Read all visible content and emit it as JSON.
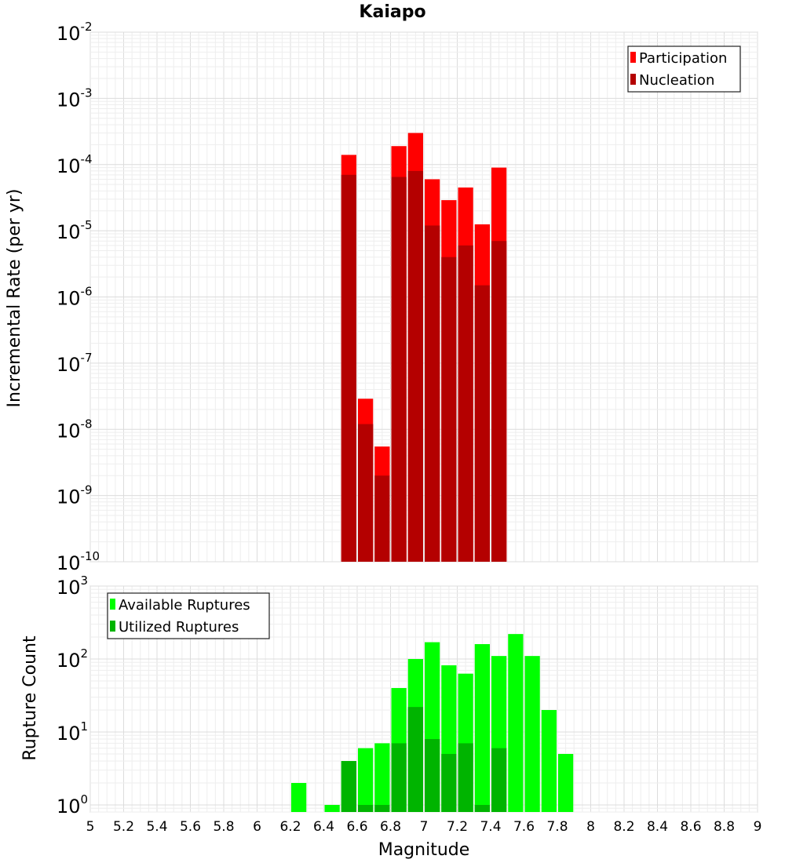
{
  "chart_data": [
    {
      "type": "bar",
      "title": "Kaiapo",
      "xlabel": "",
      "ylabel": "Incremental Rate (per yr)",
      "xlim": [
        5,
        9
      ],
      "ylim": [
        1e-10,
        0.01
      ],
      "yscale": "log",
      "yticks": [
        {
          "base": "10",
          "exp": "-2"
        },
        {
          "base": "10",
          "exp": "-3"
        },
        {
          "base": "10",
          "exp": "-4"
        },
        {
          "base": "10",
          "exp": "-5"
        },
        {
          "base": "10",
          "exp": "-6"
        },
        {
          "base": "10",
          "exp": "-7"
        },
        {
          "base": "10",
          "exp": "-8"
        },
        {
          "base": "10",
          "exp": "-9"
        },
        {
          "base": "10",
          "exp": "-10"
        }
      ],
      "grid": true,
      "legend_position": "top-right",
      "x": [
        6.55,
        6.65,
        6.75,
        6.85,
        6.95,
        7.05,
        7.15,
        7.25,
        7.35,
        7.45
      ],
      "series": [
        {
          "name": "Participation",
          "color": "#ff0000",
          "values": [
            0.00014,
            2.9e-08,
            5.5e-09,
            0.00019,
            0.0003,
            6e-05,
            2.9e-05,
            4.5e-05,
            1.25e-05,
            9e-05
          ]
        },
        {
          "name": "Nucleation",
          "color": "#b40000",
          "values": [
            7e-05,
            1.2e-08,
            2e-09,
            6.5e-05,
            8e-05,
            1.2e-05,
            4e-06,
            6e-06,
            1.5e-06,
            7e-06
          ]
        }
      ]
    },
    {
      "type": "bar",
      "title": "",
      "xlabel": "Magnitude",
      "ylabel": "Rupture Count",
      "xlim": [
        5,
        9
      ],
      "ylim": [
        0.8,
        1000
      ],
      "yscale": "log",
      "yticks": [
        {
          "base": "10",
          "exp": "3"
        },
        {
          "base": "10",
          "exp": "2"
        },
        {
          "base": "10",
          "exp": "1"
        },
        {
          "base": "10",
          "exp": "0"
        }
      ],
      "xticks": [
        "5",
        "5.2",
        "5.4",
        "5.6",
        "5.8",
        "6",
        "6.2",
        "6.4",
        "6.6",
        "6.8",
        "7",
        "7.2",
        "7.4",
        "7.6",
        "7.8",
        "8",
        "8.2",
        "8.4",
        "8.6",
        "8.8",
        "9"
      ],
      "grid": true,
      "legend_position": "top-left",
      "x": [
        6.25,
        6.45,
        6.55,
        6.65,
        6.75,
        6.85,
        6.95,
        7.05,
        7.15,
        7.25,
        7.35,
        7.45,
        7.55,
        7.65,
        7.75,
        7.85
      ],
      "series": [
        {
          "name": "Available Ruptures",
          "color": "#00ff00",
          "values": [
            2,
            1,
            4,
            6,
            7,
            40,
            100,
            170,
            82,
            63,
            160,
            110,
            220,
            110,
            20,
            5
          ]
        },
        {
          "name": "Utilized Ruptures",
          "color": "#00b400",
          "values": [
            0,
            0,
            4,
            1,
            1,
            7,
            22,
            8,
            5,
            7,
            1,
            6,
            0,
            0,
            0,
            0
          ]
        }
      ]
    }
  ]
}
